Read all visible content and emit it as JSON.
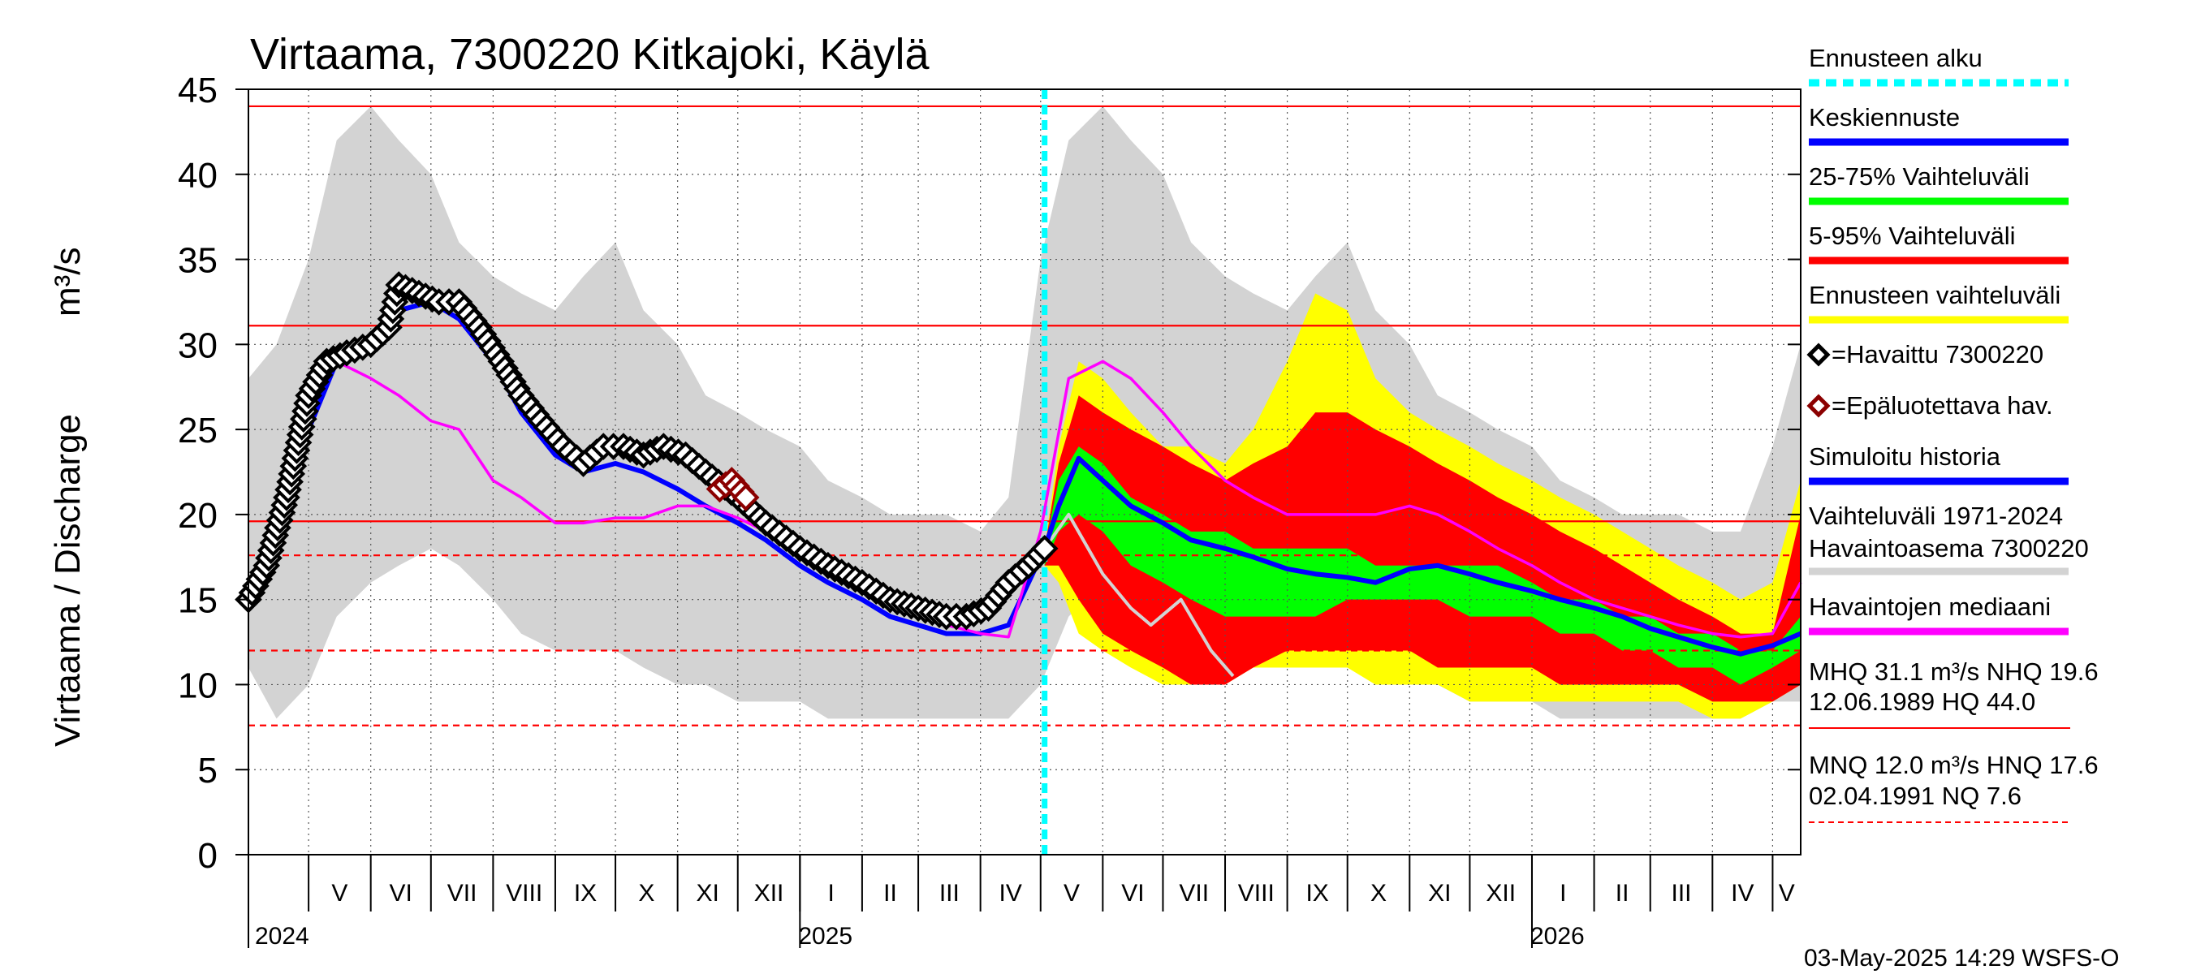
{
  "chart_data": {
    "type": "area",
    "title": "Virtaama, 7300220 Kitkajoki, Käylä",
    "ylabel": "Virtaama / Discharge",
    "yunit": "m³/s",
    "ylim": [
      0,
      45
    ],
    "yticks": [
      0,
      5,
      10,
      15,
      20,
      25,
      30,
      35,
      40,
      45
    ],
    "xlim": [
      "2024-04-01",
      "2026-05-15"
    ],
    "grid": true,
    "legend_placement": "right",
    "months": [
      {
        "label": "V",
        "date": "2024-05-01"
      },
      {
        "label": "VI",
        "date": "2024-06-01"
      },
      {
        "label": "VII",
        "date": "2024-07-01"
      },
      {
        "label": "VIII",
        "date": "2024-08-01"
      },
      {
        "label": "IX",
        "date": "2024-09-01"
      },
      {
        "label": "X",
        "date": "2024-10-01"
      },
      {
        "label": "XI",
        "date": "2024-11-01"
      },
      {
        "label": "XII",
        "date": "2024-12-01"
      },
      {
        "label": "I",
        "date": "2025-01-01"
      },
      {
        "label": "II",
        "date": "2025-02-01"
      },
      {
        "label": "III",
        "date": "2025-03-01"
      },
      {
        "label": "IV",
        "date": "2025-04-01"
      },
      {
        "label": "V",
        "date": "2025-05-01"
      },
      {
        "label": "VI",
        "date": "2025-06-01"
      },
      {
        "label": "VII",
        "date": "2025-07-01"
      },
      {
        "label": "VIII",
        "date": "2025-08-01"
      },
      {
        "label": "IX",
        "date": "2025-09-01"
      },
      {
        "label": "X",
        "date": "2025-10-01"
      },
      {
        "label": "XI",
        "date": "2025-11-01"
      },
      {
        "label": "XII",
        "date": "2025-12-01"
      },
      {
        "label": "I",
        "date": "2026-01-01"
      },
      {
        "label": "II",
        "date": "2026-02-01"
      },
      {
        "label": "III",
        "date": "2026-03-01"
      },
      {
        "label": "IV",
        "date": "2026-04-01"
      },
      {
        "label": "V",
        "date": "2026-05-01"
      }
    ],
    "years": [
      {
        "label": "2024",
        "date": "2024-04-01"
      },
      {
        "label": "2025",
        "date": "2025-01-01"
      },
      {
        "label": "2026",
        "date": "2026-01-01"
      }
    ],
    "forecast_start": "2025-05-03",
    "reference_lines": [
      {
        "name": "HQ",
        "value": 44.0,
        "style": "solid"
      },
      {
        "name": "MHQ",
        "value": 31.1,
        "style": "solid"
      },
      {
        "name": "NHQ",
        "value": 19.6,
        "style": "solid"
      },
      {
        "name": "HNQ",
        "value": 17.6,
        "style": "dashed"
      },
      {
        "name": "MNQ",
        "value": 12.0,
        "style": "dashed"
      },
      {
        "name": "NQ",
        "value": 7.6,
        "style": "dashed"
      }
    ],
    "historical_range": {
      "x": [
        "2024-04-01",
        "2024-04-15",
        "2024-05-01",
        "2024-05-15",
        "2024-06-01",
        "2024-06-15",
        "2024-07-01",
        "2024-07-15",
        "2024-08-01",
        "2024-08-15",
        "2024-09-01",
        "2024-09-15",
        "2024-10-01",
        "2024-10-15",
        "2024-11-01",
        "2024-11-15",
        "2024-12-01",
        "2024-12-15",
        "2025-01-01",
        "2025-01-15",
        "2025-02-01",
        "2025-02-15",
        "2025-03-01",
        "2025-03-15",
        "2025-04-01",
        "2025-04-15",
        "2025-05-01",
        "2025-05-15",
        "2025-06-01",
        "2025-06-15",
        "2025-07-01",
        "2025-07-15",
        "2025-08-01",
        "2025-08-15",
        "2025-09-01",
        "2025-09-15",
        "2025-10-01",
        "2025-10-15",
        "2025-11-01",
        "2025-11-15",
        "2025-12-01",
        "2025-12-15",
        "2026-01-01",
        "2026-01-15",
        "2026-02-01",
        "2026-02-15",
        "2026-03-01",
        "2026-03-15",
        "2026-04-01",
        "2026-04-15",
        "2026-05-01",
        "2026-05-15"
      ],
      "upper": [
        28,
        30,
        35,
        42,
        44,
        42,
        40,
        36,
        34,
        33,
        32,
        34,
        36,
        32,
        30,
        27,
        26,
        25,
        24,
        22,
        21,
        20,
        20,
        20,
        19,
        21,
        35,
        42,
        44,
        42,
        40,
        36,
        34,
        33,
        32,
        34,
        36,
        32,
        30,
        27,
        26,
        25,
        24,
        22,
        21,
        20,
        20,
        20,
        19,
        19,
        24,
        30
      ],
      "lower": [
        11,
        8,
        10,
        14,
        16,
        17,
        18,
        17,
        15,
        13,
        12,
        12,
        12,
        11,
        10,
        10,
        9,
        9,
        9,
        8,
        8,
        8,
        8,
        8,
        8,
        8,
        10,
        14,
        16,
        17,
        18,
        17,
        15,
        13,
        12,
        12,
        12,
        11,
        10,
        10,
        9,
        9,
        9,
        8,
        8,
        8,
        8,
        8,
        8,
        8,
        9,
        9
      ]
    },
    "forecast_x": [
      "2025-05-03",
      "2025-05-10",
      "2025-05-20",
      "2025-06-01",
      "2025-06-15",
      "2025-07-01",
      "2025-07-15",
      "2025-08-01",
      "2025-08-15",
      "2025-09-01",
      "2025-09-15",
      "2025-10-01",
      "2025-10-15",
      "2025-11-01",
      "2025-11-15",
      "2025-12-01",
      "2025-12-15",
      "2026-01-01",
      "2026-01-15",
      "2026-02-01",
      "2026-02-15",
      "2026-03-01",
      "2026-03-15",
      "2026-04-01",
      "2026-04-15",
      "2026-05-01",
      "2026-05-15"
    ],
    "forecast_range": {
      "upper": [
        18,
        24,
        29,
        28,
        26,
        24,
        24,
        23,
        25,
        29,
        33,
        32,
        28,
        26,
        25,
        24,
        23,
        22,
        21,
        20,
        19,
        18,
        17,
        16,
        15,
        16,
        22
      ],
      "lower": [
        17,
        16,
        13,
        12,
        11,
        10,
        10,
        10,
        11,
        11,
        11,
        11,
        10,
        10,
        10,
        9,
        9,
        9,
        9,
        9,
        9,
        9,
        9,
        8,
        8,
        9,
        10
      ]
    },
    "p05_95": {
      "upper": [
        18,
        23,
        27,
        26,
        25,
        24,
        23,
        22,
        23,
        24,
        26,
        26,
        25,
        24,
        23,
        22,
        21,
        20,
        19,
        18,
        17,
        16,
        15,
        14,
        13,
        13,
        20
      ],
      "lower": [
        17,
        17,
        15,
        13,
        12,
        11,
        10,
        10,
        11,
        12,
        12,
        12,
        12,
        12,
        11,
        11,
        11,
        11,
        10,
        10,
        10,
        10,
        10,
        9,
        9,
        9,
        10
      ]
    },
    "p25_75": {
      "upper": [
        18,
        22,
        24,
        23,
        21,
        20,
        19,
        19,
        18,
        18,
        18,
        18,
        17,
        17,
        17,
        17,
        17,
        16,
        15,
        15,
        14,
        14,
        13,
        13,
        12,
        12,
        14
      ],
      "lower": [
        17,
        19,
        20,
        19,
        17,
        16,
        15,
        14,
        14,
        14,
        14,
        15,
        15,
        15,
        15,
        14,
        14,
        14,
        13,
        13,
        12,
        12,
        11,
        11,
        10,
        11,
        12
      ]
    },
    "series": [
      {
        "name": "Keskiennuste",
        "color": "#0000ff",
        "x": [
          "2025-05-03",
          "2025-05-10",
          "2025-05-20",
          "2025-06-01",
          "2025-06-15",
          "2025-07-01",
          "2025-07-15",
          "2025-08-01",
          "2025-08-15",
          "2025-09-01",
          "2025-09-15",
          "2025-10-01",
          "2025-10-15",
          "2025-11-01",
          "2025-11-15",
          "2025-12-01",
          "2025-12-15",
          "2026-01-01",
          "2026-01-15",
          "2026-02-01",
          "2026-02-15",
          "2026-03-01",
          "2026-03-15",
          "2026-04-01",
          "2026-04-15",
          "2026-05-01",
          "2026-05-15"
        ],
        "y": [
          18,
          20.5,
          23.3,
          22,
          20.5,
          19.5,
          18.5,
          18,
          17.5,
          16.8,
          16.5,
          16.3,
          16,
          16.8,
          17,
          16.5,
          16,
          15.5,
          15,
          14.5,
          14,
          13.3,
          12.8,
          12.2,
          11.8,
          12.3,
          13
        ]
      },
      {
        "name": "Havaittu 7300220",
        "color": "#000000",
        "x": [
          "2024-04-01",
          "2024-04-10",
          "2024-04-20",
          "2024-05-01",
          "2024-05-10",
          "2024-05-20",
          "2024-06-01",
          "2024-06-10",
          "2024-06-15",
          "2024-06-25",
          "2024-07-05",
          "2024-07-15",
          "2024-07-25",
          "2024-08-05",
          "2024-08-15",
          "2024-08-25",
          "2024-09-05",
          "2024-09-15",
          "2024-09-25",
          "2024-10-05",
          "2024-10-15",
          "2024-10-25",
          "2024-11-05",
          "2024-11-15",
          "2024-12-01",
          "2024-12-15",
          "2025-01-01",
          "2025-01-15",
          "2025-02-01",
          "2025-02-15",
          "2025-03-01",
          "2025-03-15",
          "2025-03-25",
          "2025-04-05",
          "2025-04-15",
          "2025-04-25",
          "2025-05-03"
        ],
        "y": [
          15,
          17,
          21,
          27,
          29,
          29.5,
          30,
          31,
          33.5,
          33,
          32.5,
          32.5,
          31,
          29,
          27,
          25.5,
          24,
          23,
          24,
          24,
          23.5,
          24,
          23.5,
          22.5,
          21,
          19.5,
          18,
          17,
          16,
          15,
          14.5,
          14,
          14,
          14.5,
          16,
          17,
          18
        ]
      },
      {
        "name": "Epäluotettava hav.",
        "color": "#8b0000",
        "x": [
          "2024-11-22",
          "2024-11-28",
          "2024-12-05"
        ],
        "y": [
          21.5,
          22,
          21
        ]
      },
      {
        "name": "Simuloitu historia",
        "color": "#0000ff",
        "x": [
          "2024-04-01",
          "2024-04-15",
          "2024-05-01",
          "2024-05-15",
          "2024-06-01",
          "2024-06-15",
          "2024-07-01",
          "2024-07-15",
          "2024-08-01",
          "2024-08-15",
          "2024-09-01",
          "2024-09-15",
          "2024-10-01",
          "2024-10-15",
          "2024-11-01",
          "2024-11-15",
          "2024-12-01",
          "2024-12-15",
          "2025-01-01",
          "2025-01-15",
          "2025-02-01",
          "2025-02-15",
          "2025-03-01",
          "2025-03-15",
          "2025-04-01",
          "2025-04-15",
          "2025-05-03"
        ],
        "y": [
          15,
          18,
          25,
          29,
          30,
          32,
          32.5,
          31.5,
          29,
          26,
          23.5,
          22.5,
          23,
          22.5,
          21.5,
          20.5,
          19.5,
          18.5,
          17,
          16,
          15,
          14,
          13.5,
          13,
          13,
          13.5,
          18
        ]
      },
      {
        "name": "Havaintojen mediaani",
        "color": "#ff00ff",
        "x": [
          "2024-04-01",
          "2024-04-15",
          "2024-05-01",
          "2024-05-15",
          "2024-06-01",
          "2024-06-15",
          "2024-07-01",
          "2024-07-15",
          "2024-08-01",
          "2024-08-15",
          "2024-09-01",
          "2024-09-15",
          "2024-10-01",
          "2024-10-15",
          "2024-11-01",
          "2024-11-15",
          "2024-12-01",
          "2024-12-15",
          "2025-01-01",
          "2025-01-15",
          "2025-02-01",
          "2025-02-15",
          "2025-03-01",
          "2025-03-15",
          "2025-04-01",
          "2025-04-15",
          "2025-05-01",
          "2025-05-15",
          "2025-06-01",
          "2025-06-15",
          "2025-07-01",
          "2025-07-15",
          "2025-08-01",
          "2025-08-15",
          "2025-09-01",
          "2025-09-15",
          "2025-10-01",
          "2025-10-15",
          "2025-11-01",
          "2025-11-15",
          "2025-12-01",
          "2025-12-15",
          "2026-01-01",
          "2026-01-15",
          "2026-02-01",
          "2026-02-15",
          "2026-03-01",
          "2026-03-15",
          "2026-04-01",
          "2026-04-15",
          "2026-05-01",
          "2026-05-15"
        ],
        "y": [
          15,
          18,
          26,
          29,
          28,
          27,
          25.5,
          25,
          22,
          21,
          19.5,
          19.5,
          19.8,
          19.8,
          20.5,
          20.5,
          19.8,
          19,
          17.5,
          16.5,
          15.5,
          14.8,
          14,
          13.5,
          13,
          12.8,
          19,
          28,
          29,
          28,
          26,
          24,
          22,
          21,
          20,
          20,
          20,
          20,
          20.5,
          20,
          19,
          18,
          17,
          16,
          15,
          14.5,
          14,
          13.5,
          13,
          12.8,
          13,
          16
        ]
      },
      {
        "name": "Vaihteluväli 1971-2024 Havaintoasema 7300220",
        "color": "#d3d3d3",
        "x": [
          "2025-05-03",
          "2025-05-15",
          "2025-06-01",
          "2025-06-15",
          "2025-06-25",
          "2025-07-10",
          "2025-07-25",
          "2025-08-05"
        ],
        "y": [
          18,
          20,
          16.5,
          14.5,
          13.5,
          15,
          12,
          10.5
        ]
      }
    ],
    "legend": [
      {
        "label": "Ennusteen alku",
        "color": "#00ffff",
        "style": "dashed"
      },
      {
        "label": "Keskiennuste",
        "color": "#0000ff",
        "style": "line"
      },
      {
        "label": "25-75% Vaihteluväli",
        "color": "#00ff00",
        "style": "line"
      },
      {
        "label": "5-95% Vaihteluväli",
        "color": "#ff0000",
        "style": "line"
      },
      {
        "label": "Ennusteen vaihteluväli",
        "color": "#ffff00",
        "style": "line"
      },
      {
        "label": "=Havaittu 7300220",
        "color": "#000000",
        "style": "diamond"
      },
      {
        "label": "=Epäluotettava hav.",
        "color": "#8b0000",
        "style": "diamond"
      },
      {
        "label": "Simuloitu historia",
        "color": "#0000ff",
        "style": "line"
      },
      {
        "label": "Vaihteluväli 1971-2024",
        "label2": " Havaintoasema 7300220",
        "color": "#d3d3d3",
        "style": "line"
      },
      {
        "label": "Havaintojen mediaani",
        "color": "#ff00ff",
        "style": "line"
      }
    ],
    "stats": {
      "high_line1": "MHQ 31.1 m³/s NHQ 19.6",
      "high_line2": "12.06.1989 HQ 44.0",
      "low_line1": "MNQ 12.0 m³/s HNQ 17.6",
      "low_line2": "02.04.1991 NQ  7.6"
    },
    "footer": "03-May-2025 14:29 WSFS-O",
    "colors": {
      "historical_band": "#d3d3d3",
      "forecast_band": "#ffff00",
      "p05_95": "#ff0000",
      "p25_75": "#00ff00",
      "reference": "#ff0000",
      "forecast_start": "#00ffff",
      "grid": "#000000"
    }
  }
}
